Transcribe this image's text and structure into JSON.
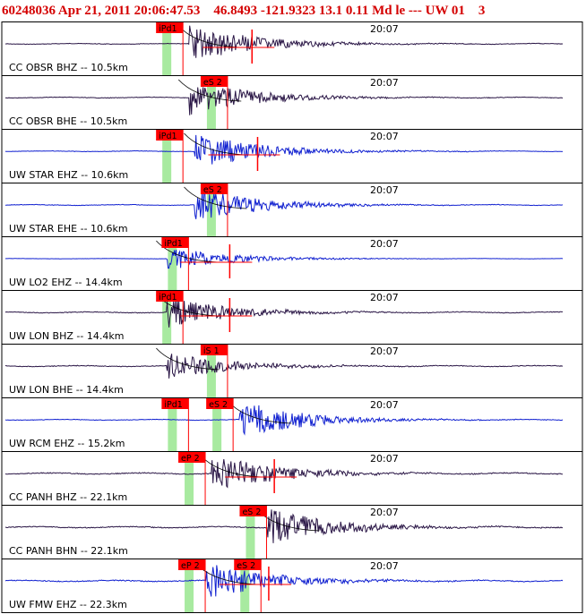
{
  "header": {
    "event_line": "60248036 Apr 21, 2011 20:06:47.53    46.8493 -121.9323 13.1 0.11 Md le --- UW 01    3"
  },
  "colors": {
    "header_text": "#d40000",
    "pick_box": "#ff0000",
    "pick_window": "#a8eaa0",
    "trace_dark": "#2a1646",
    "trace_blue": "#1020d0",
    "panel_border": "#000000"
  },
  "chart_data": {
    "type": "line",
    "time_tick_label": "20:07",
    "series": [
      {
        "name": "CC OBSR BHZ -- 10.5km",
        "color": "dark",
        "amp": 1.0,
        "noise": 0.06,
        "onset": 0.33,
        "spike": true,
        "picks": [
          {
            "label": "iPd1",
            "t": 0.28
          }
        ]
      },
      {
        "name": "CC OBSR BHE -- 10.5km",
        "color": "dark",
        "amp": 0.9,
        "noise": 0.06,
        "onset": 0.33,
        "spike": false,
        "picks": [
          {
            "label": "eS 2",
            "t": 0.36
          }
        ]
      },
      {
        "name": "UW STAR EHZ -- 10.6km",
        "color": "blue",
        "amp": 1.0,
        "noise": 0.05,
        "onset": 0.34,
        "spike": true,
        "picks": [
          {
            "label": "iPd1",
            "t": 0.28
          }
        ]
      },
      {
        "name": "UW STAR EHE -- 10.6km",
        "color": "blue",
        "amp": 0.9,
        "noise": 0.06,
        "onset": 0.34,
        "spike": false,
        "picks": [
          {
            "label": "eS 2",
            "t": 0.36
          }
        ]
      },
      {
        "name": "UW LO2 EHZ -- 14.4km",
        "color": "blue",
        "amp": 0.6,
        "noise": 0.02,
        "onset": 0.29,
        "spike": true,
        "picks": [
          {
            "label": "iPd1",
            "t": 0.29
          }
        ]
      },
      {
        "name": "UW LON BHZ -- 14.4km",
        "color": "dark",
        "amp": 0.8,
        "noise": 0.08,
        "onset": 0.29,
        "spike": true,
        "picks": [
          {
            "label": "iPd1",
            "t": 0.28
          }
        ]
      },
      {
        "name": "UW LON BHE -- 14.4km",
        "color": "dark",
        "amp": 0.7,
        "noise": 0.08,
        "onset": 0.29,
        "spike": false,
        "picks": [
          {
            "label": "iS 1",
            "t": 0.36
          }
        ]
      },
      {
        "name": "UW RCM EHZ -- 15.2km",
        "color": "blue",
        "amp": 1.0,
        "noise": 0.06,
        "onset": 0.42,
        "spike": false,
        "picks": [
          {
            "label": "iPd1",
            "t": 0.29
          },
          {
            "label": "eS 2",
            "t": 0.37
          }
        ]
      },
      {
        "name": "CC PANH BHZ -- 22.1km",
        "color": "dark",
        "amp": 1.0,
        "noise": 0.1,
        "onset": 0.37,
        "spike": true,
        "picks": [
          {
            "label": "eP 2",
            "t": 0.32
          }
        ]
      },
      {
        "name": "CC PANH BHN -- 22.1km",
        "color": "dark",
        "amp": 1.0,
        "noise": 0.1,
        "onset": 0.47,
        "spike": false,
        "picks": [
          {
            "label": "eS 2",
            "t": 0.43
          }
        ]
      },
      {
        "name": "UW FMW EHZ -- 22.3km",
        "color": "blue",
        "amp": 1.0,
        "noise": 0.1,
        "onset": 0.36,
        "spike": true,
        "picks": [
          {
            "label": "eP 2",
            "t": 0.32
          },
          {
            "label": "eS 2",
            "t": 0.42
          }
        ]
      }
    ]
  }
}
